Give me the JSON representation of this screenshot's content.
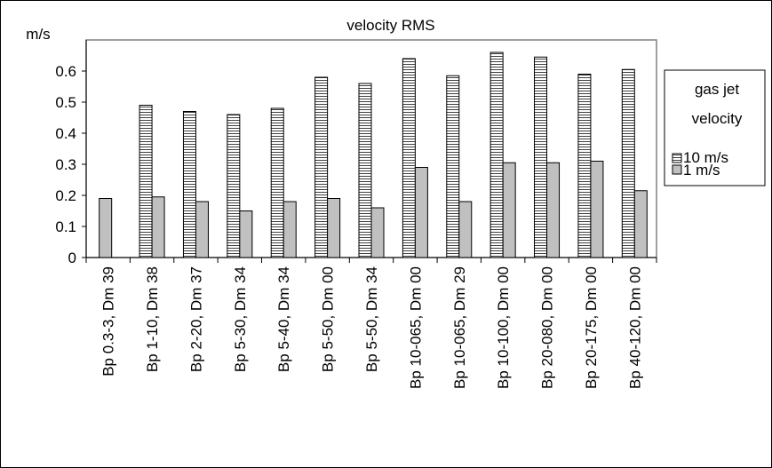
{
  "chart_data": {
    "type": "bar",
    "title": "velocity RMS",
    "ylabel": "m/s",
    "xlabel": "",
    "ylim": [
      0,
      0.7
    ],
    "yticks": [
      "0",
      "0.1",
      "0.2",
      "0.3",
      "0.4",
      "0.5",
      "0.6"
    ],
    "ytick_values": [
      0,
      0.1,
      0.2,
      0.3,
      0.4,
      0.5,
      0.6
    ],
    "grid": false,
    "legend_position": "right",
    "legend_title": [
      "gas jet",
      "velocity"
    ],
    "categories": [
      "Bp 0.3-3, Dm 39",
      "Bp 1-10, Dm 38",
      "Bp 2-20, Dm 37",
      "Bp 5-30, Dm 34",
      "Bp 5-40, Dm 34",
      "Bp 5-50, Dm 00",
      "Bp 5-50, Dm 34",
      "Bp 10-065, Dm 00",
      "Bp 10-065, Dm 29",
      "Bp 10-100, Dm 00",
      "Bp 20-080, Dm 00",
      "Bp 20-175, Dm 00",
      "Bp 40-120, Dm 00"
    ],
    "series": [
      {
        "name": "10 m/s",
        "pattern": "horizontal-stripes",
        "values": [
          null,
          0.49,
          0.47,
          0.46,
          0.48,
          0.58,
          0.56,
          0.64,
          0.585,
          0.66,
          0.645,
          0.59,
          0.605
        ]
      },
      {
        "name": "1 m/s",
        "color": "#c0c0c0",
        "values": [
          0.19,
          0.195,
          0.18,
          0.15,
          0.18,
          0.19,
          0.16,
          0.29,
          0.18,
          0.305,
          0.305,
          0.31,
          0.215
        ]
      }
    ]
  }
}
